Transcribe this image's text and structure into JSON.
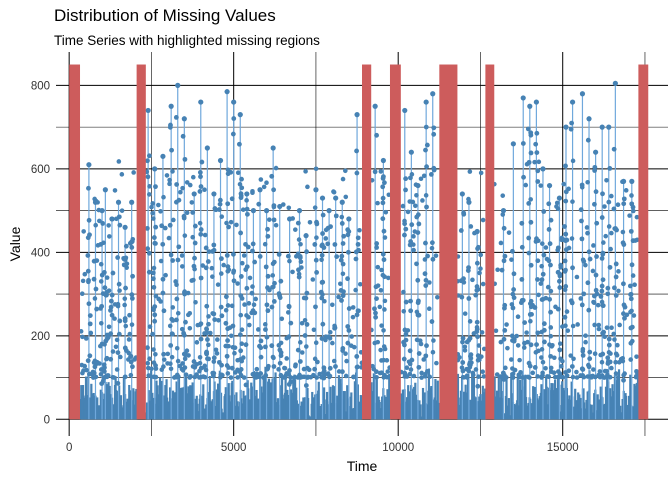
{
  "chart_data": {
    "type": "line",
    "title": "Distribution of Missing Values",
    "subtitle": "Time Series with highlighted missing regions",
    "xlabel": "Time",
    "ylabel": "Value",
    "xlim": [
      -400,
      18200
    ],
    "ylim": [
      -40,
      880
    ],
    "x_ticks": [
      0,
      5000,
      10000,
      15000
    ],
    "y_ticks": [
      0,
      200,
      400,
      600,
      800
    ],
    "grid": "major and minor, black",
    "line_color": "#6FA8DC",
    "point_color": "#4682B4",
    "missing_color": "#CD5C5C",
    "missing_region_top": 850,
    "missing_regions": [
      [
        0,
        330
      ],
      [
        2050,
        2330
      ],
      [
        8900,
        9180
      ],
      [
        9750,
        10080
      ],
      [
        11250,
        11800
      ],
      [
        12650,
        12920
      ],
      [
        17300,
        17600
      ]
    ],
    "peaks": [
      {
        "x": 600,
        "y": 610
      },
      {
        "x": 800,
        "y": 520
      },
      {
        "x": 1000,
        "y": 500
      },
      {
        "x": 1100,
        "y": 550
      },
      {
        "x": 1300,
        "y": 480
      },
      {
        "x": 1500,
        "y": 520
      },
      {
        "x": 1700,
        "y": 460
      },
      {
        "x": 1900,
        "y": 520
      },
      {
        "x": 2400,
        "y": 740
      },
      {
        "x": 2600,
        "y": 600
      },
      {
        "x": 2850,
        "y": 630
      },
      {
        "x": 3100,
        "y": 750
      },
      {
        "x": 3300,
        "y": 800
      },
      {
        "x": 3500,
        "y": 720
      },
      {
        "x": 3800,
        "y": 540
      },
      {
        "x": 4000,
        "y": 760
      },
      {
        "x": 4200,
        "y": 650
      },
      {
        "x": 4400,
        "y": 540
      },
      {
        "x": 4600,
        "y": 620
      },
      {
        "x": 4800,
        "y": 785
      },
      {
        "x": 5000,
        "y": 760
      },
      {
        "x": 5200,
        "y": 730
      },
      {
        "x": 5400,
        "y": 540
      },
      {
        "x": 5600,
        "y": 500
      },
      {
        "x": 5800,
        "y": 550
      },
      {
        "x": 6000,
        "y": 500
      },
      {
        "x": 6200,
        "y": 650
      },
      {
        "x": 6400,
        "y": 510
      },
      {
        "x": 6700,
        "y": 480
      },
      {
        "x": 7000,
        "y": 500
      },
      {
        "x": 7200,
        "y": 440
      },
      {
        "x": 7500,
        "y": 550
      },
      {
        "x": 7700,
        "y": 530
      },
      {
        "x": 7900,
        "y": 500
      },
      {
        "x": 8100,
        "y": 530
      },
      {
        "x": 8300,
        "y": 520
      },
      {
        "x": 8500,
        "y": 480
      },
      {
        "x": 8750,
        "y": 730
      },
      {
        "x": 9300,
        "y": 750
      },
      {
        "x": 9550,
        "y": 620
      },
      {
        "x": 10200,
        "y": 740
      },
      {
        "x": 10400,
        "y": 640
      },
      {
        "x": 10600,
        "y": 560
      },
      {
        "x": 10850,
        "y": 760
      },
      {
        "x": 11050,
        "y": 780
      },
      {
        "x": 11950,
        "y": 540
      },
      {
        "x": 12150,
        "y": 520
      },
      {
        "x": 12400,
        "y": 450
      },
      {
        "x": 13200,
        "y": 500
      },
      {
        "x": 13500,
        "y": 660
      },
      {
        "x": 13800,
        "y": 770
      },
      {
        "x": 14000,
        "y": 750
      },
      {
        "x": 14200,
        "y": 760
      },
      {
        "x": 14400,
        "y": 600
      },
      {
        "x": 14600,
        "y": 560
      },
      {
        "x": 14900,
        "y": 530
      },
      {
        "x": 15100,
        "y": 700
      },
      {
        "x": 15300,
        "y": 760
      },
      {
        "x": 15600,
        "y": 780
      },
      {
        "x": 15800,
        "y": 720
      },
      {
        "x": 16000,
        "y": 640
      },
      {
        "x": 16200,
        "y": 700
      },
      {
        "x": 16400,
        "y": 700
      },
      {
        "x": 16600,
        "y": 805
      },
      {
        "x": 16850,
        "y": 570
      },
      {
        "x": 17100,
        "y": 570
      }
    ],
    "baseline_band": [
      0,
      100
    ]
  }
}
